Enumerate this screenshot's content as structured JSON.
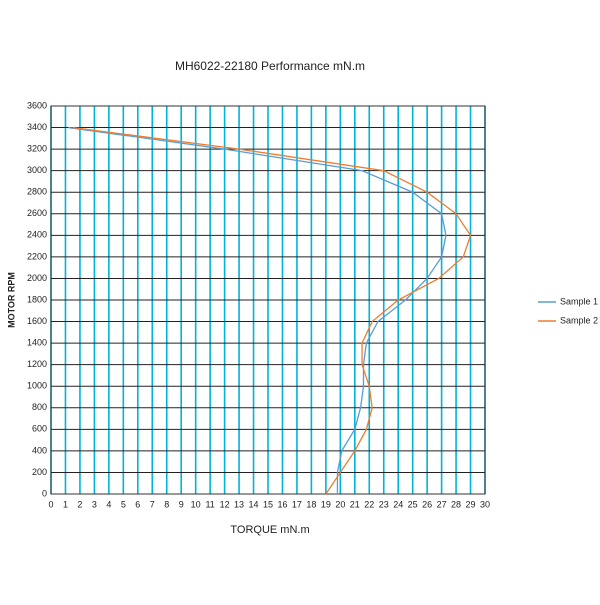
{
  "chart_data": {
    "type": "line",
    "title": "MH6022-22180  Performance mN.m",
    "xlabel": "TORQUE mN.m",
    "ylabel": "MOTOR RPM",
    "xlim": [
      0,
      30
    ],
    "xticks": [
      0,
      1,
      2,
      3,
      4,
      5,
      6,
      7,
      8,
      9,
      10,
      11,
      12,
      13,
      14,
      15,
      16,
      17,
      18,
      19,
      20,
      21,
      22,
      23,
      24,
      25,
      26,
      27,
      28,
      29,
      30
    ],
    "ylim": [
      0,
      3600
    ],
    "yticks": [
      0,
      200,
      400,
      600,
      800,
      1000,
      1200,
      1400,
      1600,
      1800,
      2000,
      2200,
      2400,
      2600,
      2800,
      3000,
      3200,
      3400,
      3600
    ],
    "grid": true,
    "legend": "right",
    "series": [
      {
        "name": "Sample 1",
        "color": "#5b9bd5",
        "x": [
          19.8,
          19.8,
          20.1,
          21,
          21.4,
          21.6,
          21.6,
          21.8,
          22.6,
          24.5,
          26,
          27,
          27.3,
          27,
          25,
          21.5,
          12,
          1.2
        ],
        "values": [
          0,
          200,
          400,
          600,
          800,
          1000,
          1200,
          1400,
          1600,
          1800,
          2000,
          2200,
          2400,
          2600,
          2800,
          3000,
          3200,
          3400
        ]
      },
      {
        "name": "Sample 2",
        "color": "#ed7d31",
        "x": [
          19,
          20,
          21,
          21.8,
          22.2,
          22,
          21.5,
          21.5,
          22.2,
          24,
          26.8,
          28.5,
          29,
          28,
          26,
          23,
          13,
          1.5
        ],
        "values": [
          0,
          200,
          400,
          600,
          800,
          1000,
          1200,
          1400,
          1600,
          1800,
          2000,
          2200,
          2400,
          2600,
          2800,
          3000,
          3200,
          3400
        ]
      }
    ]
  }
}
